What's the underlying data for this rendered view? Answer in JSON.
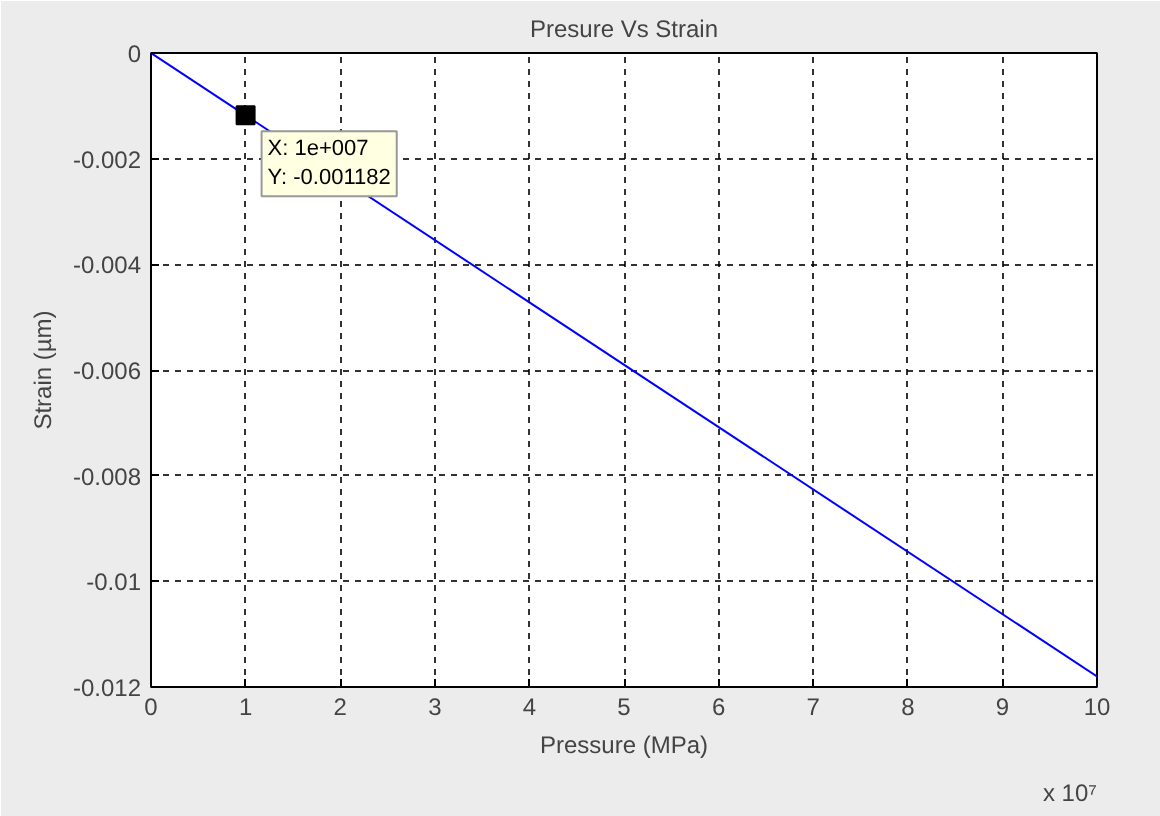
{
  "chart_data": {
    "type": "line",
    "title": "Presure Vs Strain",
    "xlabel": "Pressure (MPa)",
    "ylabel": "Strain (µm)",
    "x": [
      0,
      10
    ],
    "series": [
      {
        "color": "#0000ff",
        "values": [
          0,
          -0.0118
        ]
      }
    ],
    "xlim": [
      0,
      10
    ],
    "xticks": [
      0,
      1,
      2,
      3,
      4,
      5,
      6,
      7,
      8,
      9,
      10
    ],
    "ylim": [
      -0.012,
      0
    ],
    "yticks": [
      0,
      -0.002,
      -0.004,
      -0.006,
      -0.008,
      -0.01,
      -0.012
    ],
    "grid": true,
    "line_style": "solid",
    "marker": "none",
    "annotations": [
      {
        "text": "X: 1e+007\nY: -0.001182",
        "x": 1,
        "y": -0.00118
      },
      "x 10⁷"
    ]
  }
}
